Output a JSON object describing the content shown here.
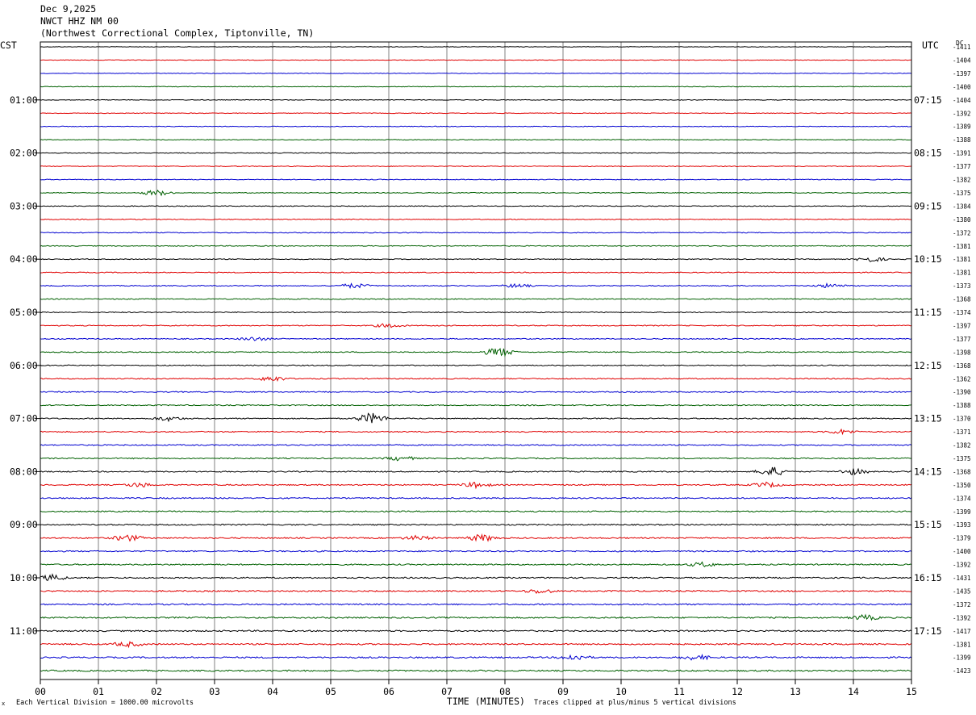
{
  "header": {
    "date": "Dec 9,2025",
    "station": "NWCT HHZ NM 00",
    "location": "(Northwest Correctional Complex, Tiptonville, TN)"
  },
  "labels": {
    "left_tz": "CST",
    "right_tz": "UTC",
    "dc": "DC"
  },
  "footer": {
    "division": "Each Vertical Division = 1000.00 microvolts",
    "xlabel": "TIME (MINUTES)",
    "clip": "Traces clipped at plus/minus 5 vertical divisions",
    "mark": "x"
  },
  "chart_data": {
    "type": "line",
    "title": "",
    "xlabel": "TIME (MINUTES)",
    "xlim": [
      0,
      15
    ],
    "x_ticks": [
      "00",
      "01",
      "02",
      "03",
      "04",
      "05",
      "06",
      "07",
      "08",
      "09",
      "10",
      "11",
      "12",
      "13",
      "14",
      "15"
    ],
    "trace_colors": [
      "#000000",
      "#e00000",
      "#0000d0",
      "#006000"
    ],
    "trace_minutes": 15,
    "left_hour_labels": [
      "01:00",
      "02:00",
      "03:00",
      "04:00",
      "05:00",
      "06:00",
      "07:00",
      "08:00",
      "09:00",
      "10:00",
      "11:00"
    ],
    "right_hour_labels": [
      "07:15",
      "08:15",
      "09:15",
      "10:15",
      "11:15",
      "12:15",
      "13:15",
      "14:15",
      "15:15",
      "16:15",
      "17:15"
    ],
    "dc_offsets": [
      -1411,
      -1404,
      -1397,
      -1400,
      -1404,
      -1392,
      -1389,
      -1388,
      -1391,
      -1377,
      -1382,
      -1375,
      -1384,
      -1380,
      -1372,
      -1381,
      -1381,
      -1381,
      -1373,
      -1368,
      -1374,
      -1397,
      -1377,
      -1398,
      -1368,
      -1362,
      -1390,
      -1388,
      -1370,
      -1371,
      -1382,
      -1375,
      -1368,
      -1350,
      -1374,
      -1399,
      -1393,
      -1379,
      -1400,
      -1392,
      -1431,
      -1435,
      -1372,
      -1392,
      -1417,
      -1381,
      -1399,
      -1423
    ],
    "events": [
      {
        "trace": 11,
        "minute": 2.0,
        "amp": 1.6
      },
      {
        "trace": 16,
        "minute": 14.3,
        "amp": 1.4
      },
      {
        "trace": 18,
        "minute": 5.4,
        "amp": 1.3
      },
      {
        "trace": 18,
        "minute": 8.2,
        "amp": 1.0
      },
      {
        "trace": 18,
        "minute": 13.6,
        "amp": 1.2
      },
      {
        "trace": 21,
        "minute": 6.0,
        "amp": 1.1
      },
      {
        "trace": 22,
        "minute": 3.7,
        "amp": 1.1
      },
      {
        "trace": 23,
        "minute": 7.9,
        "amp": 2.6
      },
      {
        "trace": 25,
        "minute": 4.0,
        "amp": 1.4
      },
      {
        "trace": 28,
        "minute": 5.7,
        "amp": 3.0
      },
      {
        "trace": 28,
        "minute": 2.2,
        "amp": 1.2
      },
      {
        "trace": 29,
        "minute": 13.8,
        "amp": 1.2
      },
      {
        "trace": 31,
        "minute": 6.2,
        "amp": 1.2
      },
      {
        "trace": 32,
        "minute": 12.6,
        "amp": 2.6
      },
      {
        "trace": 32,
        "minute": 14.0,
        "amp": 1.6
      },
      {
        "trace": 33,
        "minute": 1.7,
        "amp": 1.2
      },
      {
        "trace": 33,
        "minute": 7.5,
        "amp": 1.4
      },
      {
        "trace": 33,
        "minute": 12.5,
        "amp": 1.3
      },
      {
        "trace": 37,
        "minute": 1.5,
        "amp": 1.7
      },
      {
        "trace": 37,
        "minute": 7.6,
        "amp": 1.9
      },
      {
        "trace": 37,
        "minute": 6.5,
        "amp": 1.2
      },
      {
        "trace": 39,
        "minute": 11.4,
        "amp": 1.2
      },
      {
        "trace": 40,
        "minute": 0.2,
        "amp": 1.6
      },
      {
        "trace": 41,
        "minute": 8.6,
        "amp": 1.2
      },
      {
        "trace": 43,
        "minute": 14.2,
        "amp": 1.4
      },
      {
        "trace": 45,
        "minute": 1.5,
        "amp": 1.3
      },
      {
        "trace": 46,
        "minute": 9.2,
        "amp": 1.6
      },
      {
        "trace": 46,
        "minute": 11.3,
        "amp": 1.4
      }
    ]
  }
}
